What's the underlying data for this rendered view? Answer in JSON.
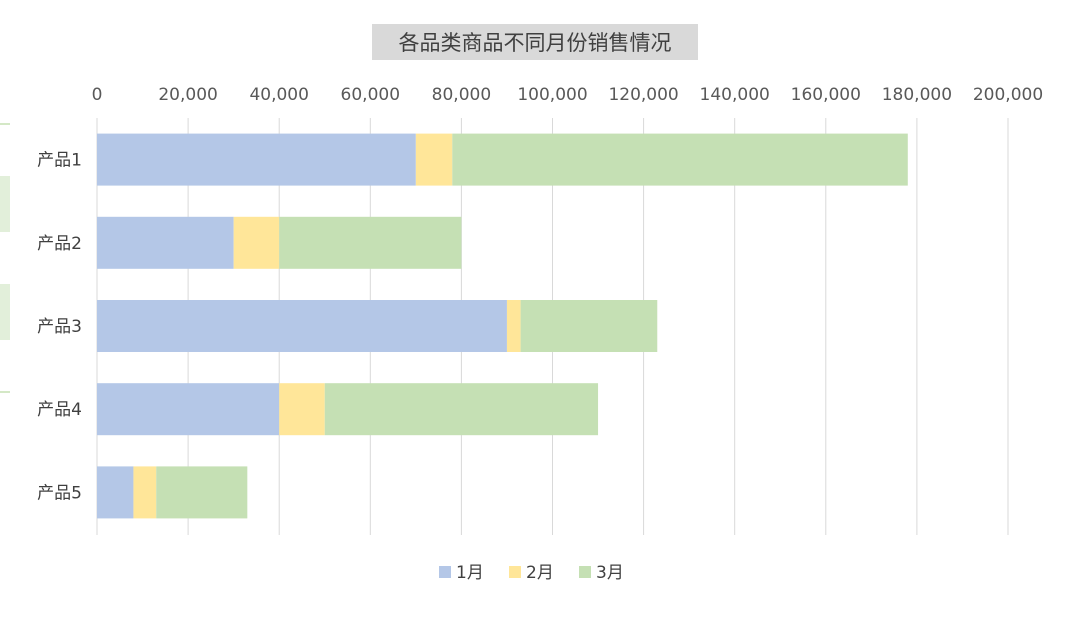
{
  "chart_data": {
    "type": "bar",
    "orientation": "horizontal",
    "stacked": true,
    "title": "各品类商品不同月份销售情况",
    "categories": [
      "产品1",
      "产品2",
      "产品3",
      "产品4",
      "产品5"
    ],
    "series": [
      {
        "name": "1月",
        "color": "#b4c7e7",
        "values": [
          70000,
          30000,
          90000,
          40000,
          8000
        ]
      },
      {
        "name": "2月",
        "color": "#ffe699",
        "values": [
          8000,
          10000,
          3000,
          10000,
          5000
        ]
      },
      {
        "name": "3月",
        "color": "#c5e0b4",
        "values": [
          100000,
          40000,
          30000,
          60000,
          20000
        ]
      }
    ],
    "xlim": [
      0,
      200000
    ],
    "x_ticks": [
      "0",
      "20,000",
      "40,000",
      "60,000",
      "80,000",
      "100,000",
      "120,000",
      "140,000",
      "160,000",
      "180,000",
      "200,000"
    ],
    "x_tick_step": 20000,
    "axis_position": "top",
    "grid": true,
    "legend_position": "bottom"
  }
}
